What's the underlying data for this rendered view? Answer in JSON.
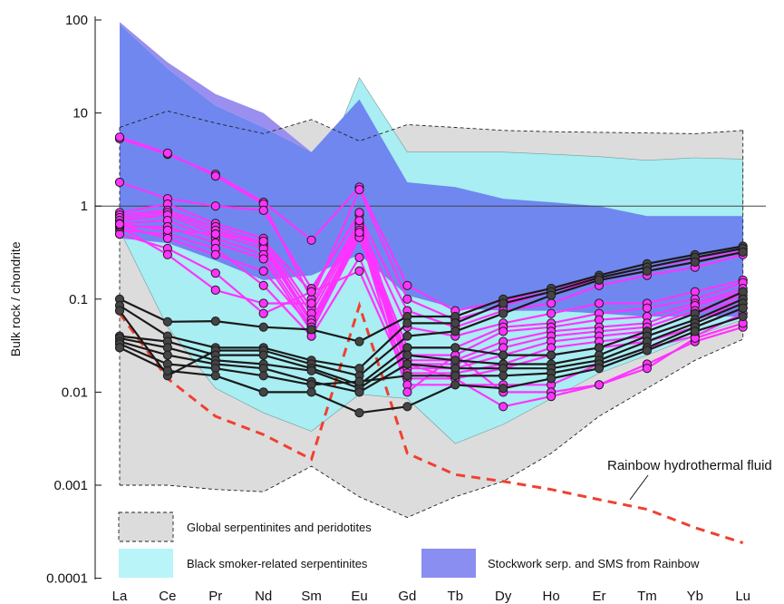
{
  "chart_data": {
    "type": "line",
    "title": "",
    "xlabel": "",
    "ylabel": "Bulk rock / chondrite",
    "yscale": "log",
    "ylim": [
      0.0001,
      100
    ],
    "yticks": [
      "100",
      "10",
      "1",
      "0.1",
      "0.01",
      "0.001",
      "0.0001"
    ],
    "reference_line": 1,
    "categories": [
      "La",
      "Ce",
      "Pr",
      "Nd",
      "Sm",
      "Eu",
      "Gd",
      "Tb",
      "Dy",
      "Ho",
      "Er",
      "Tm",
      "Yb",
      "Lu"
    ],
    "colors": {
      "global_fill": "#dcdcdc",
      "black_smoker_fill": "#a8eef2",
      "stockwork_fill": "#6f87ef",
      "stockwork_light": "#9a8fef",
      "magenta_series": "#ff33ff",
      "black_series": "#1a1a1a",
      "fluid_line": "#f04030"
    },
    "fields": [
      {
        "name": "Global serpentinites and peridotites",
        "upper": [
          7,
          10.5,
          7.8,
          6,
          8.5,
          5,
          7.5,
          7,
          6.5,
          6.3,
          6.2,
          6.1,
          6,
          6.5
        ],
        "lower": [
          0.001,
          0.001,
          0.0009,
          0.00085,
          0.0016,
          0.00075,
          0.00045,
          0.00075,
          0.0011,
          0.0022,
          0.0055,
          0.011,
          0.022,
          0.037
        ]
      },
      {
        "name": "Black smoker-related serpentinites",
        "upper": [
          1.0,
          1.1,
          1.0,
          1.0,
          1.2,
          24,
          3.8,
          3.8,
          3.8,
          3.6,
          3.4,
          3.1,
          3.3,
          3.2
        ],
        "lower": [
          0.55,
          0.05,
          0.011,
          0.006,
          0.0038,
          0.0095,
          0.0085,
          0.0028,
          0.0045,
          0.0085,
          0.016,
          0.025,
          0.04,
          0.06
        ]
      },
      {
        "name": "Stockwork serp. and SMS from Rainbow",
        "upper": [
          90,
          30,
          12,
          7,
          3.8,
          14,
          1.8,
          1.6,
          1.2,
          1.1,
          1.0,
          0.78,
          0.78,
          0.78
        ],
        "lower": [
          0.45,
          0.4,
          0.26,
          0.16,
          0.18,
          0.3,
          0.11,
          0.08,
          0.075,
          0.075,
          0.07,
          0.065,
          0.065,
          0.065
        ],
        "light_upper": [
          95,
          35,
          16,
          10,
          3.8
        ]
      }
    ],
    "series_magenta": [
      [
        5.3,
        3.6,
        2.2,
        1.1,
        0.43,
        1.6,
        0.14,
        0.075,
        0.095,
        0.13,
        0.17,
        0.22,
        0.27,
        0.35
      ],
      [
        5.5,
        3.7,
        2.1,
        1.05,
        0.1,
        1.5,
        0.1,
        0.06,
        0.085,
        0.12,
        0.16,
        0.2,
        0.25,
        0.33
      ],
      [
        1.8,
        1.2,
        1.0,
        0.9,
        0.13,
        0.8,
        0.075,
        0.05,
        0.075,
        0.09,
        0.14,
        0.18,
        0.22,
        0.3
      ],
      [
        0.85,
        1.05,
        0.65,
        0.45,
        0.08,
        0.65,
        0.05,
        0.04,
        0.055,
        0.07,
        0.09,
        0.09,
        0.12,
        0.16
      ],
      [
        0.8,
        0.9,
        0.6,
        0.4,
        0.07,
        0.6,
        0.03,
        0.03,
        0.05,
        0.055,
        0.07,
        0.08,
        0.1,
        0.15
      ],
      [
        0.75,
        0.85,
        0.55,
        0.38,
        0.06,
        0.55,
        0.025,
        0.025,
        0.045,
        0.05,
        0.06,
        0.065,
        0.09,
        0.13
      ],
      [
        0.7,
        0.8,
        0.5,
        0.35,
        0.055,
        0.5,
        0.022,
        0.022,
        0.035,
        0.045,
        0.05,
        0.055,
        0.085,
        0.12
      ],
      [
        0.65,
        0.7,
        0.45,
        0.3,
        0.05,
        0.48,
        0.02,
        0.02,
        0.03,
        0.04,
        0.045,
        0.05,
        0.075,
        0.11
      ],
      [
        0.6,
        0.6,
        0.4,
        0.27,
        0.045,
        0.46,
        0.018,
        0.018,
        0.025,
        0.035,
        0.04,
        0.045,
        0.07,
        0.1
      ],
      [
        0.55,
        0.5,
        0.35,
        0.14,
        0.04,
        0.28,
        0.016,
        0.016,
        0.02,
        0.03,
        0.035,
        0.04,
        0.06,
        0.09
      ],
      [
        0.5,
        0.35,
        0.19,
        0.07,
        0.12,
        0.2,
        0.014,
        0.014,
        0.018,
        0.025,
        0.03,
        0.035,
        0.05,
        0.08
      ],
      [
        0.6,
        0.3,
        0.125,
        0.09,
        0.09,
        0.7,
        0.012,
        0.012,
        0.012,
        0.012,
        0.02,
        0.03,
        0.04,
        0.07
      ],
      [
        0.62,
        0.45,
        0.3,
        0.2,
        0.05,
        0.52,
        0.01,
        0.025,
        0.01,
        0.01,
        0.012,
        0.02,
        0.035,
        0.05
      ],
      [
        0.64,
        0.55,
        0.5,
        0.42,
        0.12,
        0.85,
        0.02,
        0.014,
        0.007,
        0.009,
        0.012,
        0.018,
        0.038,
        0.055
      ]
    ],
    "series_black": [
      [
        0.1,
        0.057,
        0.058,
        0.05,
        0.047,
        0.035,
        0.065,
        0.065,
        0.1,
        0.13,
        0.18,
        0.24,
        0.3,
        0.37
      ],
      [
        0.085,
        0.04,
        0.03,
        0.03,
        0.022,
        0.018,
        0.055,
        0.055,
        0.09,
        0.12,
        0.17,
        0.22,
        0.28,
        0.35
      ],
      [
        0.075,
        0.015,
        0.028,
        0.028,
        0.02,
        0.015,
        0.04,
        0.045,
        0.07,
        0.11,
        0.16,
        0.2,
        0.25,
        0.32
      ],
      [
        0.04,
        0.035,
        0.025,
        0.025,
        0.018,
        0.012,
        0.03,
        0.03,
        0.025,
        0.025,
        0.03,
        0.045,
        0.07,
        0.12
      ],
      [
        0.038,
        0.03,
        0.022,
        0.02,
        0.017,
        0.011,
        0.025,
        0.022,
        0.02,
        0.02,
        0.025,
        0.04,
        0.06,
        0.1
      ],
      [
        0.035,
        0.025,
        0.02,
        0.018,
        0.013,
        0.01,
        0.02,
        0.018,
        0.018,
        0.018,
        0.022,
        0.035,
        0.055,
        0.09
      ],
      [
        0.033,
        0.02,
        0.018,
        0.015,
        0.012,
        0.013,
        0.015,
        0.015,
        0.015,
        0.016,
        0.02,
        0.03,
        0.05,
        0.08
      ],
      [
        0.03,
        0.017,
        0.015,
        0.01,
        0.01,
        0.006,
        0.007,
        0.012,
        0.011,
        0.014,
        0.018,
        0.028,
        0.045,
        0.065
      ]
    ],
    "fluid_series": [
      0.07,
      0.014,
      0.0055,
      0.0035,
      0.0019,
      0.085,
      0.0022,
      0.0013,
      0.0011,
      0.0009,
      0.0007,
      0.00055,
      0.00035,
      0.00024
    ],
    "fluid_label": "Rainbow hydrothermal fluid",
    "legend": [
      {
        "label": "Global serpentinites and peridotites",
        "color": "#dcdcdc",
        "dashed": true
      },
      {
        "label": "Black smoker-related serpentinites",
        "color": "#b8f4f8",
        "dashed": false
      },
      {
        "label": "Stockwork serp. and SMS from Rainbow",
        "color": "#8a8ef0",
        "dashed": false
      }
    ]
  }
}
